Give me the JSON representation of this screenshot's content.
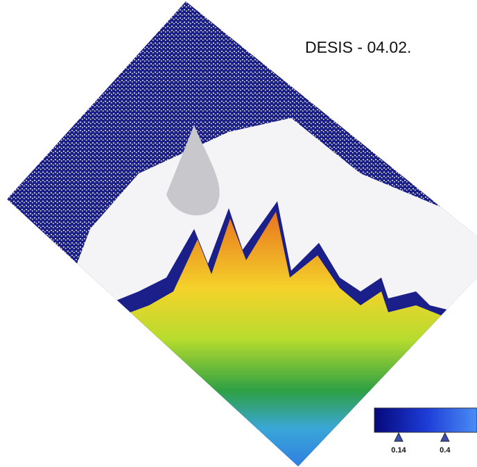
{
  "title": "DESIS - 04.02.",
  "colorbar": {
    "ticks": [
      0.14,
      0.4
    ]
  }
}
